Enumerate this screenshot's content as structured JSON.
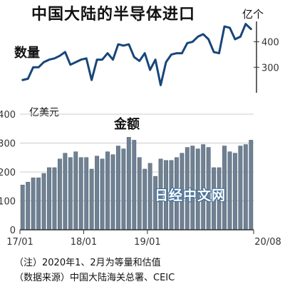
{
  "title": "中国大陆的半导体进口",
  "unit_top": "亿个",
  "volume_label": "数量",
  "unit_left": "亿美元",
  "value_label": "金额",
  "watermark": "日经中文网",
  "note_line1": "（注）2020年1、2月为等量和估值",
  "note_line2": "（数据来源）中国大陆海关总署、CEIC",
  "colors": {
    "bar": "#6f8193",
    "bar_edge": "#4a5a6a",
    "line": "#17467a",
    "grid": "#cccccc",
    "axis": "#333333"
  },
  "chart_data": [
    {
      "type": "line",
      "series_label": "数量",
      "unit": "亿个",
      "yticks": [
        300,
        400
      ],
      "ylim": [
        200,
        480
      ],
      "x": [
        "2017-01",
        "2017-02",
        "2017-03",
        "2017-04",
        "2017-05",
        "2017-06",
        "2017-07",
        "2017-08",
        "2017-09",
        "2017-10",
        "2017-11",
        "2017-12",
        "2018-01",
        "2018-02",
        "2018-03",
        "2018-04",
        "2018-05",
        "2018-06",
        "2018-07",
        "2018-08",
        "2018-09",
        "2018-10",
        "2018-11",
        "2018-12",
        "2019-01",
        "2019-02",
        "2019-03",
        "2019-04",
        "2019-05",
        "2019-06",
        "2019-07",
        "2019-08",
        "2019-09",
        "2019-10",
        "2019-11",
        "2019-12",
        "2020-01",
        "2020-02",
        "2020-03",
        "2020-04",
        "2020-05",
        "2020-06",
        "2020-07",
        "2020-08"
      ],
      "values": [
        250,
        255,
        300,
        300,
        320,
        330,
        335,
        345,
        360,
        310,
        320,
        330,
        335,
        250,
        330,
        330,
        355,
        330,
        390,
        385,
        390,
        340,
        325,
        355,
        290,
        330,
        230,
        320,
        350,
        355,
        355,
        395,
        400,
        420,
        430,
        410,
        360,
        355,
        460,
        455,
        410,
        420,
        470,
        450
      ]
    },
    {
      "type": "bar",
      "series_label": "金额",
      "unit": "亿美元",
      "yticks": [
        0,
        100,
        200,
        300,
        400
      ],
      "ylim": [
        0,
        400
      ],
      "xtick_labels": [
        "17/01",
        "18/01",
        "19/01",
        "20/08"
      ],
      "categories": [
        "2017-01",
        "2017-02",
        "2017-03",
        "2017-04",
        "2017-05",
        "2017-06",
        "2017-07",
        "2017-08",
        "2017-09",
        "2017-10",
        "2017-11",
        "2017-12",
        "2018-01",
        "2018-02",
        "2018-03",
        "2018-04",
        "2018-05",
        "2018-06",
        "2018-07",
        "2018-08",
        "2018-09",
        "2018-10",
        "2018-11",
        "2018-12",
        "2019-01",
        "2019-02",
        "2019-03",
        "2019-04",
        "2019-05",
        "2019-06",
        "2019-07",
        "2019-08",
        "2019-09",
        "2019-10",
        "2019-11",
        "2019-12",
        "2020-01",
        "2020-02",
        "2020-03",
        "2020-04",
        "2020-05",
        "2020-06",
        "2020-07",
        "2020-08"
      ],
      "values": [
        155,
        165,
        180,
        180,
        195,
        215,
        215,
        245,
        265,
        250,
        270,
        250,
        250,
        210,
        255,
        245,
        270,
        260,
        290,
        280,
        320,
        310,
        250,
        210,
        230,
        185,
        245,
        240,
        240,
        250,
        265,
        285,
        290,
        280,
        295,
        285,
        215,
        215,
        290,
        270,
        265,
        290,
        295,
        310
      ]
    }
  ]
}
